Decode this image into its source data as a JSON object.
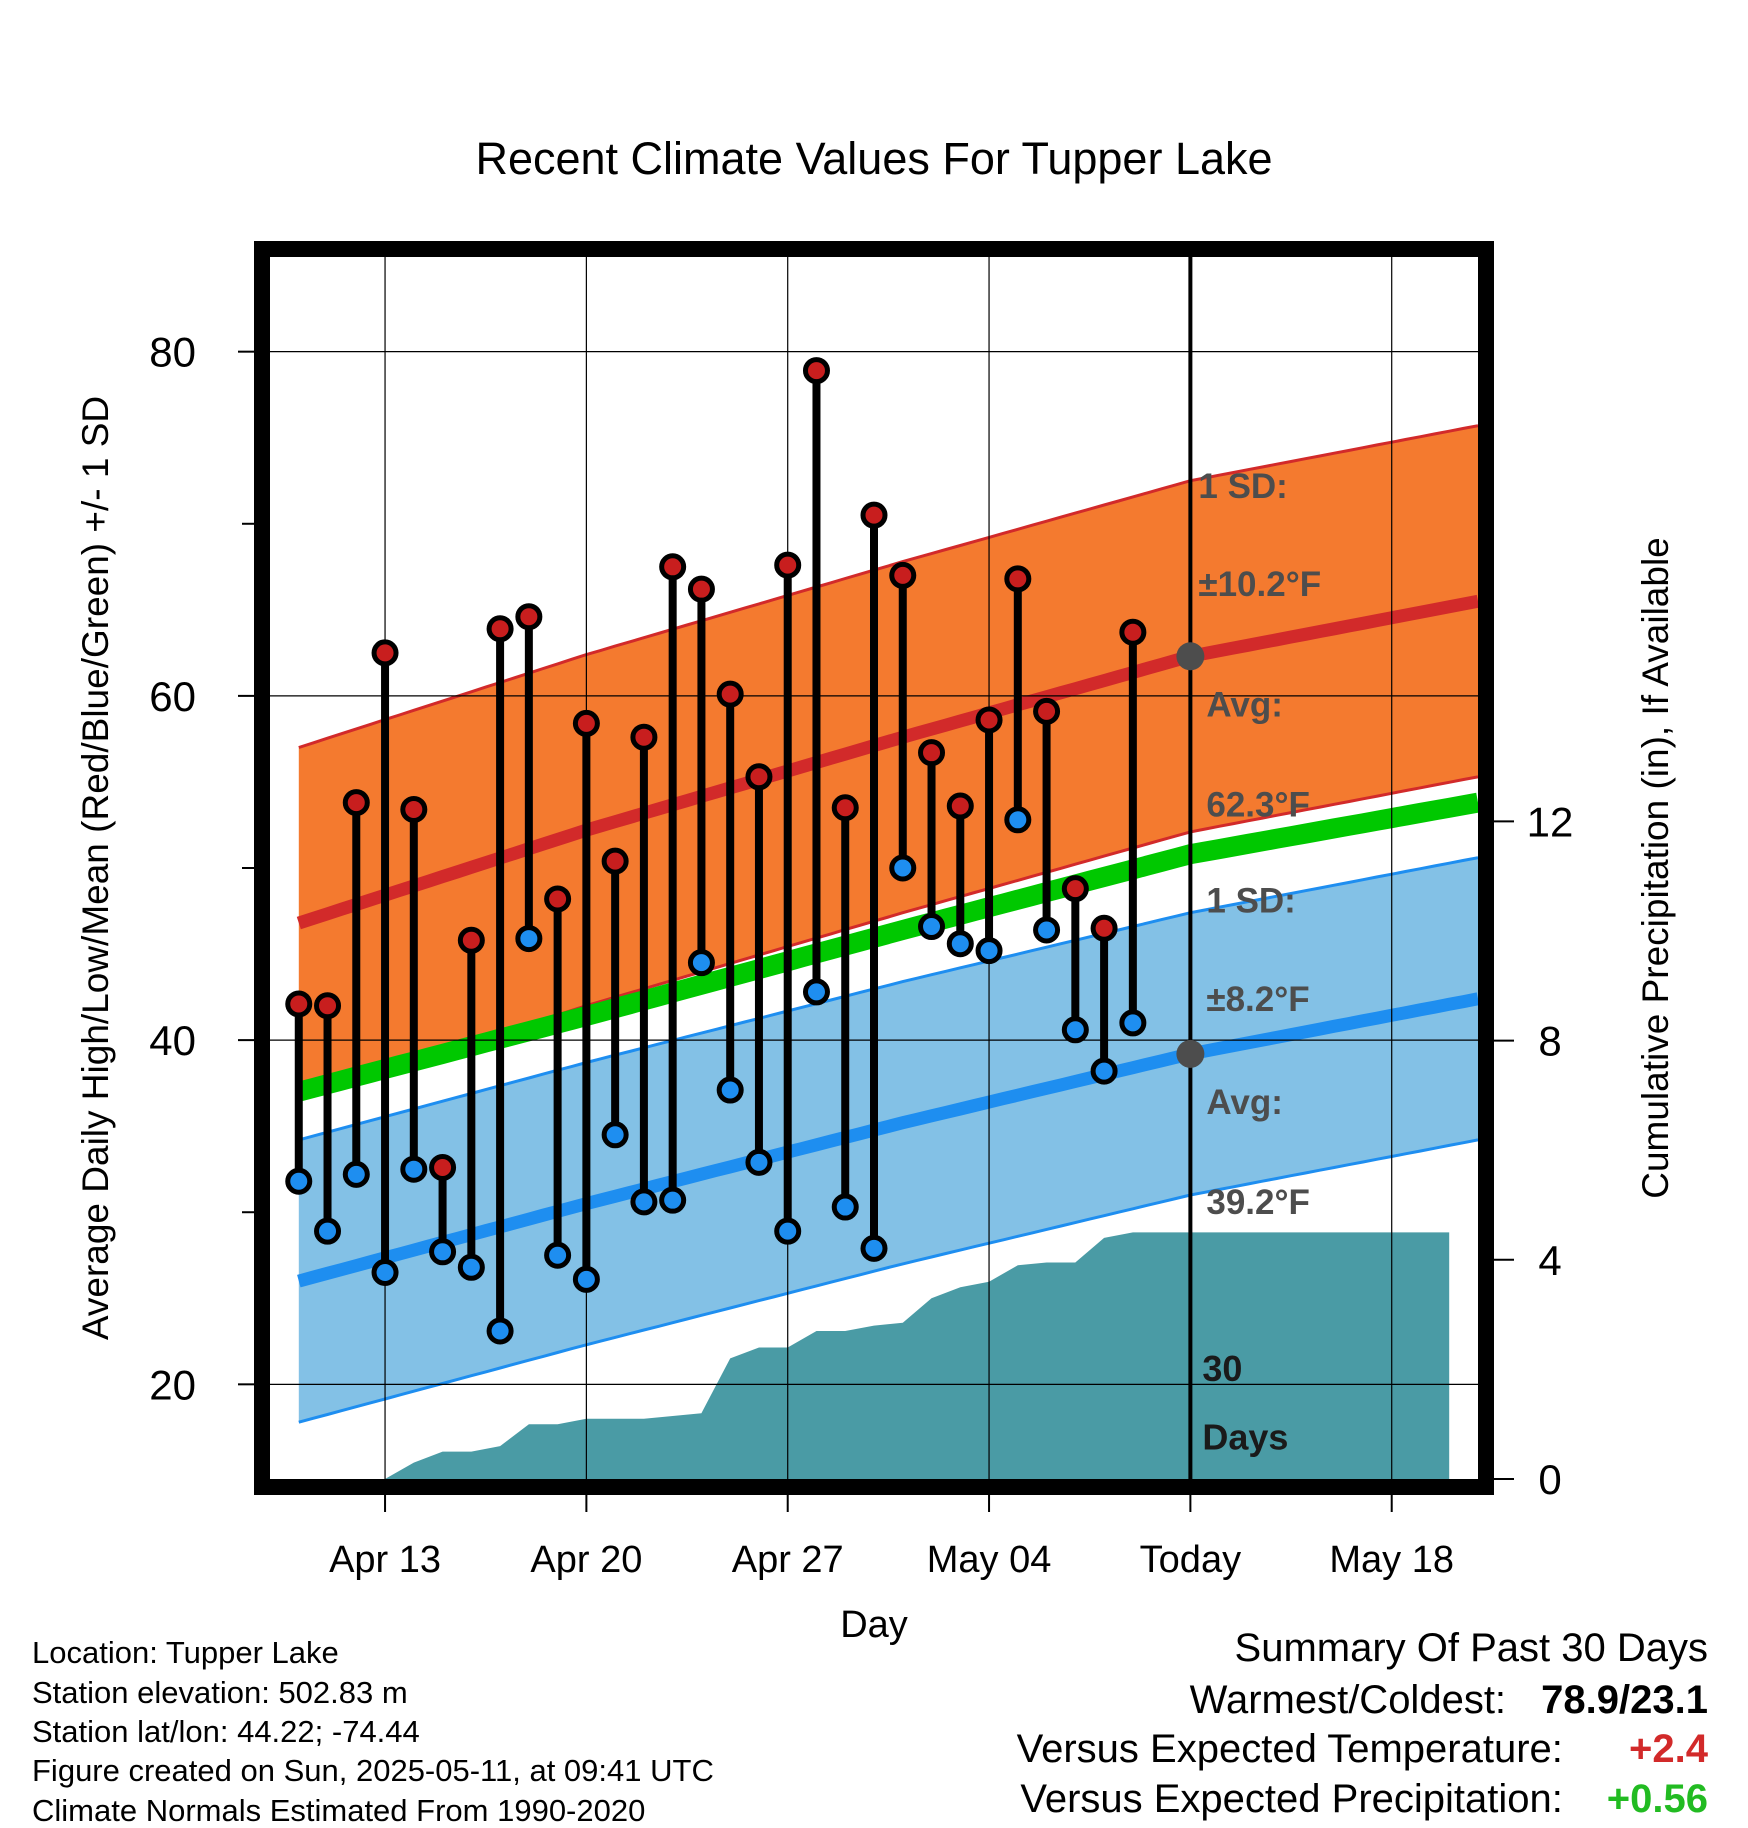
{
  "chart_data": {
    "type": "line",
    "title": "Recent Climate Values For Tupper Lake",
    "xlabel": "Day",
    "ylabel": "Average Daily High/Low/Mean (Red/Blue/Green) +/- 1 SD",
    "y2label": "Cumulative Precipitation (in), If Available",
    "xlim": [
      "2025-04-09",
      "2025-05-21"
    ],
    "ylim": [
      14.5,
      85.5
    ],
    "y2lim": [
      0,
      22.3
    ],
    "grid": true,
    "x_tick_dates": [
      "2025-04-13",
      "2025-04-20",
      "2025-04-27",
      "2025-05-04",
      "2025-05-11",
      "2025-05-18"
    ],
    "x_tick_labels": [
      "Apr 13",
      "Apr 20",
      "Apr 27",
      "May 04",
      "Today",
      "May 18"
    ],
    "y_ticks": [
      20,
      40,
      60,
      80
    ],
    "y2_ticks": [
      0,
      4,
      8,
      12
    ],
    "colors": {
      "high_band": "#f47a2f",
      "high_line": "#d22a2a",
      "high_dot": "#c81e1e",
      "low_band": "#83c1e6",
      "low_line": "#1e8ef0",
      "low_dot": "#1e8ef0",
      "mean_line": "#00c800",
      "precip": "#4a9ba5",
      "label": "#4d4d4d"
    },
    "normal_dates": [
      "2025-04-10",
      "2025-04-20",
      "2025-05-01",
      "2025-05-11",
      "2025-05-21"
    ],
    "normal_high": [
      46.8,
      52.2,
      57.6,
      62.3,
      65.5
    ],
    "normal_low": [
      26.0,
      30.5,
      35.2,
      39.2,
      42.4
    ],
    "normal_mean": [
      37.0,
      41.4,
      46.4,
      50.8,
      53.8
    ],
    "sd_high": 10.2,
    "sd_low": 8.2,
    "daily": [
      {
        "date": "2025-04-10",
        "high": 42.1,
        "low": 31.8
      },
      {
        "date": "2025-04-11",
        "high": 42.0,
        "low": 28.9
      },
      {
        "date": "2025-04-12",
        "high": 53.8,
        "low": 32.2
      },
      {
        "date": "2025-04-13",
        "high": 62.5,
        "low": 26.5
      },
      {
        "date": "2025-04-14",
        "high": 53.4,
        "low": 32.5
      },
      {
        "date": "2025-04-15",
        "high": 32.6,
        "low": 27.7
      },
      {
        "date": "2025-04-16",
        "high": 45.8,
        "low": 26.8
      },
      {
        "date": "2025-04-17",
        "high": 63.9,
        "low": 23.1
      },
      {
        "date": "2025-04-18",
        "high": 64.6,
        "low": 45.9
      },
      {
        "date": "2025-04-19",
        "high": 48.2,
        "low": 27.5
      },
      {
        "date": "2025-04-20",
        "high": 58.4,
        "low": 26.1
      },
      {
        "date": "2025-04-21",
        "high": 50.4,
        "low": 34.5
      },
      {
        "date": "2025-04-22",
        "high": 57.6,
        "low": 30.6
      },
      {
        "date": "2025-04-23",
        "high": 67.5,
        "low": 30.7
      },
      {
        "date": "2025-04-24",
        "high": 66.2,
        "low": 44.5
      },
      {
        "date": "2025-04-25",
        "high": 60.1,
        "low": 37.1
      },
      {
        "date": "2025-04-26",
        "high": 55.3,
        "low": 32.9
      },
      {
        "date": "2025-04-27",
        "high": 67.6,
        "low": 28.9
      },
      {
        "date": "2025-04-28",
        "high": 78.9,
        "low": 42.8
      },
      {
        "date": "2025-04-29",
        "high": 53.5,
        "low": 30.3
      },
      {
        "date": "2025-04-30",
        "high": 70.5,
        "low": 27.9
      },
      {
        "date": "2025-05-01",
        "high": 67.0,
        "low": 50.0
      },
      {
        "date": "2025-05-02",
        "high": 56.7,
        "low": 46.6
      },
      {
        "date": "2025-05-03",
        "high": 53.6,
        "low": 45.6
      },
      {
        "date": "2025-05-04",
        "high": 58.6,
        "low": 45.2
      },
      {
        "date": "2025-05-05",
        "high": 66.8,
        "low": 52.8
      },
      {
        "date": "2025-05-06",
        "high": 59.1,
        "low": 46.4
      },
      {
        "date": "2025-05-07",
        "high": 48.8,
        "low": 40.6
      },
      {
        "date": "2025-05-08",
        "high": 46.5,
        "low": 38.2
      },
      {
        "date": "2025-05-09",
        "high": 63.7,
        "low": 41.0
      }
    ],
    "precip_cumulative": [
      {
        "date": "2025-04-10",
        "value": 0.0
      },
      {
        "date": "2025-04-13",
        "value": 0.0
      },
      {
        "date": "2025-04-14",
        "value": 0.3
      },
      {
        "date": "2025-04-15",
        "value": 0.5
      },
      {
        "date": "2025-04-16",
        "value": 0.5
      },
      {
        "date": "2025-04-17",
        "value": 0.6
      },
      {
        "date": "2025-04-18",
        "value": 1.0
      },
      {
        "date": "2025-04-19",
        "value": 1.0
      },
      {
        "date": "2025-04-20",
        "value": 1.1
      },
      {
        "date": "2025-04-21",
        "value": 1.1
      },
      {
        "date": "2025-04-22",
        "value": 1.1
      },
      {
        "date": "2025-04-23",
        "value": 1.15
      },
      {
        "date": "2025-04-24",
        "value": 1.2
      },
      {
        "date": "2025-04-25",
        "value": 2.2
      },
      {
        "date": "2025-04-26",
        "value": 2.4
      },
      {
        "date": "2025-04-27",
        "value": 2.4
      },
      {
        "date": "2025-04-28",
        "value": 2.7
      },
      {
        "date": "2025-04-29",
        "value": 2.7
      },
      {
        "date": "2025-04-30",
        "value": 2.8
      },
      {
        "date": "2025-05-01",
        "value": 2.85
      },
      {
        "date": "2025-05-02",
        "value": 3.3
      },
      {
        "date": "2025-05-03",
        "value": 3.5
      },
      {
        "date": "2025-05-04",
        "value": 3.6
      },
      {
        "date": "2025-05-05",
        "value": 3.9
      },
      {
        "date": "2025-05-06",
        "value": 3.95
      },
      {
        "date": "2025-05-07",
        "value": 3.95
      },
      {
        "date": "2025-05-08",
        "value": 4.4
      },
      {
        "date": "2025-05-09",
        "value": 4.5
      },
      {
        "date": "2025-05-20",
        "value": 4.5
      }
    ],
    "annotations": {
      "high_sd_line1": "1 SD:",
      "high_sd_line2": "±10.2°F",
      "high_avg_line1": "Avg:",
      "high_avg_line2": "62.3°F",
      "low_sd_line1": "1 SD:",
      "low_sd_line2": "±8.2°F",
      "low_avg_line1": "Avg:",
      "low_avg_line2": "39.2°F",
      "days_line1": "30",
      "days_line2": "Days"
    }
  },
  "info": {
    "location": "Location: Tupper Lake",
    "elevation": "Station elevation: 502.83 m",
    "latlon": "Station lat/lon: 44.22; -74.44",
    "created": "Figure created on Sun, 2025-05-11, at 09:41 UTC",
    "normals": "Climate Normals Estimated From 1990-2020"
  },
  "summary": {
    "title": "Summary Of Past 30 Days",
    "warmest_label": "Warmest/Coldest:",
    "warmest_value": "78.9/23.1",
    "temp_label": "Versus Expected Temperature:",
    "temp_value": "+2.4",
    "temp_color": "#d22a2a",
    "precip_label": "Versus Expected Precipitation:",
    "precip_value": "+0.56",
    "precip_color": "#22bb22"
  }
}
